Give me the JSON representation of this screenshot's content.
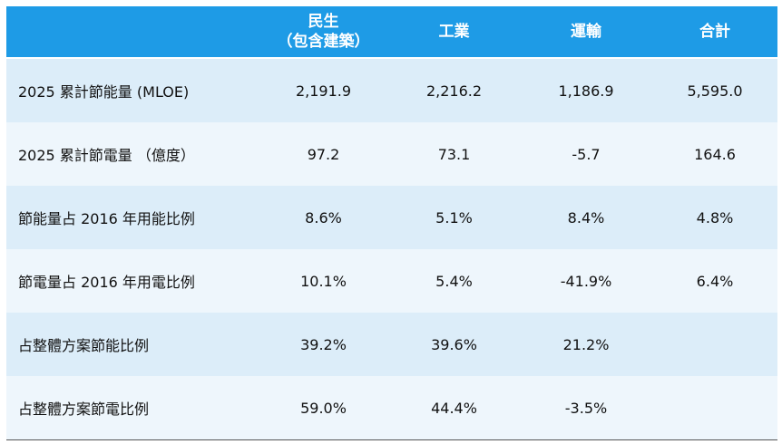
{
  "table": {
    "headers": [
      {
        "line1": "",
        "line2": ""
      },
      {
        "line1": "民生",
        "line2": "（包含建築）"
      },
      {
        "line1": "工業",
        "line2": ""
      },
      {
        "line1": "運輸",
        "line2": ""
      },
      {
        "line1": "合計",
        "line2": ""
      }
    ],
    "rows": [
      {
        "label": "2025 累計節能量 (MLOE)",
        "cells": [
          "2,191.9",
          "2,216.2",
          "1,186.9",
          "5,595.0"
        ]
      },
      {
        "label": "2025 累計節電量 （億度）",
        "cells": [
          "97.2",
          "73.1",
          "-5.7",
          "164.6"
        ]
      },
      {
        "label": "節能量占 2016 年用能比例",
        "cells": [
          "8.6%",
          "5.1%",
          "8.4%",
          "4.8%"
        ]
      },
      {
        "label": "節電量占 2016 年用電比例",
        "cells": [
          "10.1%",
          "5.4%",
          "-41.9%",
          "6.4%"
        ]
      },
      {
        "label": "占整體方案節能比例",
        "cells": [
          "39.2%",
          "39.6%",
          "21.2%",
          ""
        ]
      },
      {
        "label": "占整體方案節電比例",
        "cells": [
          "59.0%",
          "44.4%",
          "-3.5%",
          ""
        ]
      }
    ]
  },
  "colors": {
    "header_bg": "#1e9be6",
    "header_text": "#ffffff",
    "row_odd": "#dcedf9",
    "row_even": "#eef6fc"
  }
}
